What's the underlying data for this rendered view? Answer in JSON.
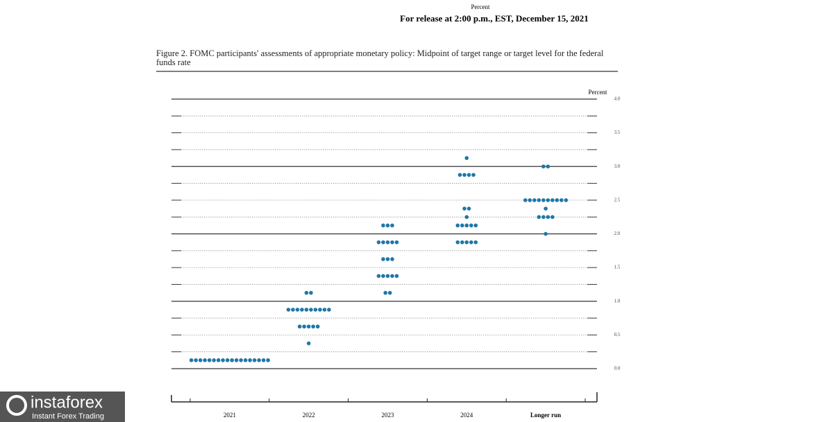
{
  "header": {
    "label": "Percent",
    "release": "For release at 2:00 p.m., EST, December 15, 2021"
  },
  "chart_data": {
    "type": "dot",
    "title": "Figure 2. FOMC participants' assessments of appropriate monetary policy: Midpoint of target range or target level for the federal funds rate",
    "y_label": "Percent",
    "categories": [
      "2021",
      "2022",
      "2023",
      "2024",
      "Longer run"
    ],
    "values": [
      [
        0.125,
        0.125,
        0.125,
        0.125,
        0.125,
        0.125,
        0.125,
        0.125,
        0.125,
        0.125,
        0.125,
        0.125,
        0.125,
        0.125,
        0.125,
        0.125,
        0.125,
        0.125
      ],
      [
        1.125,
        1.125,
        0.875,
        0.875,
        0.875,
        0.875,
        0.875,
        0.875,
        0.875,
        0.875,
        0.875,
        0.875,
        0.625,
        0.625,
        0.625,
        0.625,
        0.625,
        0.375
      ],
      [
        2.125,
        2.125,
        2.125,
        1.875,
        1.875,
        1.875,
        1.875,
        1.875,
        1.625,
        1.625,
        1.625,
        1.375,
        1.375,
        1.375,
        1.375,
        1.375,
        1.125,
        1.125
      ],
      [
        3.125,
        2.875,
        2.875,
        2.875,
        2.875,
        2.375,
        2.375,
        2.25,
        2.125,
        2.125,
        2.125,
        2.125,
        2.125,
        1.875,
        1.875,
        1.875,
        1.875,
        1.875
      ],
      [
        3.0,
        3.0,
        2.5,
        2.5,
        2.5,
        2.5,
        2.5,
        2.5,
        2.5,
        2.5,
        2.5,
        2.5,
        2.375,
        2.25,
        2.25,
        2.25,
        2.25,
        2.0
      ]
    ],
    "color": "#1f77a8",
    "ylim": [
      0,
      4
    ],
    "yticks": [
      {
        "value": 0,
        "label": "0.0"
      },
      {
        "value": 0.5,
        "label": "0.5"
      },
      {
        "value": 1,
        "label": "1.0"
      },
      {
        "value": 1.5,
        "label": "1.5"
      },
      {
        "value": 2,
        "label": "2.0"
      },
      {
        "value": 2.5,
        "label": "2.5"
      },
      {
        "value": 3,
        "label": "3.0"
      },
      {
        "value": 3.5,
        "label": "3.5"
      },
      {
        "value": 4,
        "label": "4.0"
      }
    ],
    "yminor": [
      0.25,
      0.75,
      1.25,
      1.75,
      2.25,
      2.75,
      3.25,
      3.75
    ],
    "grid": true
  },
  "watermark": {
    "name": "instaforex",
    "tagline": "Instant Forex Trading"
  }
}
